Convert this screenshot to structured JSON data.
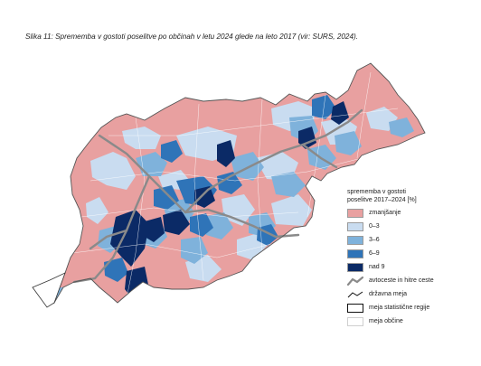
{
  "caption": "Slika 11: Sprememba v gostoti poselitve po občinah v letu 2024 glede na leto 2017 (vir: SURS, 2024).",
  "legend": {
    "title_line1": "sprememba v gostoti",
    "title_line2": "poselitve 2017–2024 [%]",
    "classes": [
      {
        "label": "zmanjšanje",
        "color": "#e8a0a0"
      },
      {
        "label": "0–3",
        "color": "#c9dcf0"
      },
      {
        "label": "3–6",
        "color": "#7fb2db"
      },
      {
        "label": "6–9",
        "color": "#2f74b8"
      },
      {
        "label": "nad 9",
        "color": "#0b2a66"
      }
    ],
    "lines": [
      {
        "label": "avtoceste in hitre ceste",
        "color": "#8a8a8a"
      },
      {
        "label": "državna meja",
        "color": "#111111"
      },
      {
        "label": "meja statistične regije",
        "color": "#111111"
      },
      {
        "label": "meja občine",
        "color": "#cfcfcf"
      }
    ]
  },
  "colors": {
    "decrease": "#e8a0a0",
    "c0_3": "#c9dcf0",
    "c3_6": "#7fb2db",
    "c6_9": "#2f74b8",
    "over9": "#0b2a66",
    "motorway": "#8a8a8a",
    "border": "#555555"
  }
}
